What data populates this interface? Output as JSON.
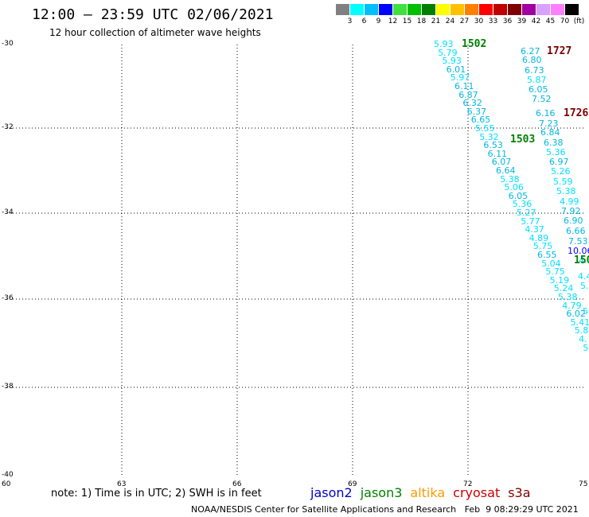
{
  "header": {
    "title": "12:00 – 23:59 UTC 02/06/2021",
    "subtitle": "12 hour collection of altimeter wave heights"
  },
  "scale": {
    "colors": [
      "#808080",
      "#00ffff",
      "#00bfff",
      "#0000ff",
      "#40e040",
      "#00c000",
      "#008000",
      "#ffff00",
      "#ffc000",
      "#ff8000",
      "#ff0000",
      "#c00000",
      "#800000",
      "#a000a0",
      "#d8a0ff",
      "#ff80ff",
      "#000000"
    ],
    "labels": [
      "3",
      "6",
      "9",
      "12",
      "15",
      "18",
      "21",
      "24",
      "27",
      "30",
      "33",
      "36",
      "39",
      "42",
      "45",
      "70",
      "(ft)"
    ]
  },
  "axes": {
    "lat_labels": [
      "-30",
      "-32",
      "-34",
      "-36",
      "-38",
      "-40"
    ],
    "lon_labels": [
      "60",
      "63",
      "66",
      "69",
      "72",
      "75"
    ]
  },
  "passes": [
    {
      "id": "1502",
      "color": "#008000"
    },
    {
      "id": "1727",
      "color": "#800000"
    },
    {
      "id": "1726",
      "color": "#800000"
    },
    {
      "id": "1503",
      "color": "#008000"
    },
    {
      "id": "150",
      "color": "#008000"
    }
  ],
  "tracks": {
    "track_a": [
      "5.93",
      "5.79",
      "5.93",
      "6.01",
      "5.97",
      "6.11",
      "6.87",
      "6.32",
      "6.37",
      "6.65",
      "5.55",
      "5.32",
      "6.53",
      "6.11",
      "6.07",
      "6.64",
      "5.38",
      "5.06",
      "6.05",
      "5.36",
      "5.27",
      "5.77",
      "4.37",
      "4.89",
      "5.75",
      "6.55",
      "5.04",
      "5.75",
      "5.19",
      "5.24",
      "5.38",
      "4.79",
      "6.02",
      "5.41",
      "5.8",
      "4.",
      "5"
    ],
    "track_b": [
      "6.27",
      "6.80",
      "6.73",
      "5.87",
      "6.05",
      "7.52",
      "6.16",
      "7.23",
      "6.84",
      "6.38",
      "5.36",
      "6.97",
      "5.26",
      "5.59",
      "5.38",
      "4.99",
      "7.92",
      "6.90",
      "6.66",
      "7.53",
      "10.06",
      "4.",
      "4.4",
      "5.",
      "5."
    ]
  },
  "footer": {
    "note": "note: 1) Time is in UTC; 2) SWH is in feet",
    "missions": [
      {
        "name": "jason2",
        "color": "#0000cc"
      },
      {
        "name": "jason3",
        "color": "#008000"
      },
      {
        "name": "altika",
        "color": "#ff9900"
      },
      {
        "name": "cryosat",
        "color": "#cc0000"
      },
      {
        "name": "s3a",
        "color": "#800000"
      }
    ],
    "credit": "NOAA/NESDIS Center for Satellite Applications and Research   Feb  9 08:29:29 UTC 2021"
  }
}
